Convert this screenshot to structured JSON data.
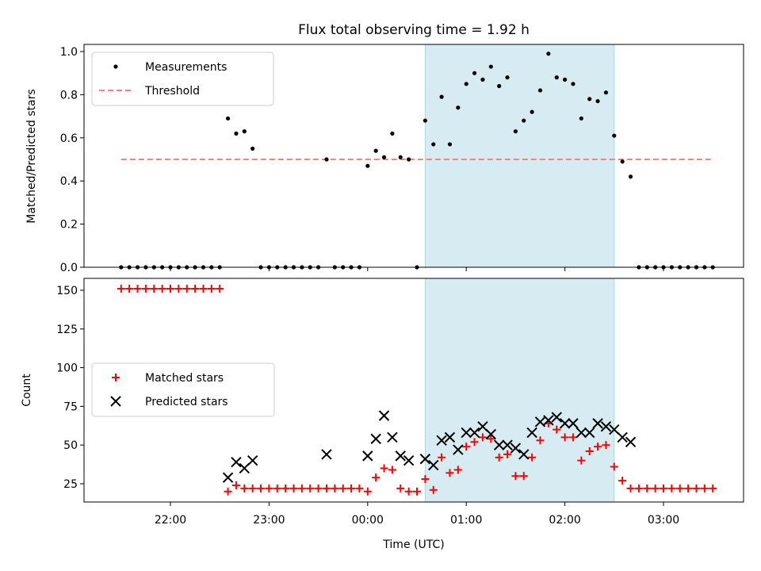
{
  "chart_data": [
    {
      "type": "scatter",
      "title": "Flux total observing time = 1.92 h",
      "ylabel": "Matched/Predicted stars",
      "xlabel": "",
      "ylim": [
        0,
        1.03
      ],
      "yticks": [
        "0.0",
        "0.2",
        "0.4",
        "0.6",
        "0.8",
        "1.0"
      ],
      "ytick_values": [
        0,
        0.2,
        0.4,
        0.6,
        0.8,
        1.0
      ],
      "legend": {
        "placement": "top-left",
        "entries": [
          "Measurements",
          "Threshold"
        ]
      },
      "shaded_interval": {
        "start": "00:35",
        "end": "02:30",
        "color": "#add8e6"
      },
      "threshold": {
        "y": 0.5,
        "x_start": "21:30",
        "x_end": "03:30",
        "color": "#ff7f7f"
      },
      "series": [
        {
          "name": "Measurements",
          "color": "#000000",
          "marker": "dot",
          "x": [
            "21:30",
            "21:35",
            "21:40",
            "21:45",
            "21:50",
            "21:55",
            "22:00",
            "22:05",
            "22:10",
            "22:15",
            "22:20",
            "22:25",
            "22:30",
            "22:35",
            "22:40",
            "22:45",
            "22:50",
            "22:55",
            "23:00",
            "23:05",
            "23:10",
            "23:15",
            "23:20",
            "23:25",
            "23:30",
            "23:35",
            "23:40",
            "23:45",
            "23:50",
            "23:55",
            "00:00",
            "00:05",
            "00:10",
            "00:15",
            "00:20",
            "00:25",
            "00:30",
            "00:35",
            "00:40",
            "00:45",
            "00:50",
            "00:55",
            "01:00",
            "01:05",
            "01:10",
            "01:15",
            "01:20",
            "01:25",
            "01:30",
            "01:35",
            "01:40",
            "01:45",
            "01:50",
            "01:55",
            "02:00",
            "02:05",
            "02:10",
            "02:15",
            "02:20",
            "02:25",
            "02:30",
            "02:35",
            "02:40",
            "02:45",
            "02:50",
            "02:55",
            "03:00",
            "03:05",
            "03:10",
            "03:15",
            "03:20",
            "03:25",
            "03:30"
          ],
          "y": [
            0,
            0,
            0,
            0,
            0,
            0,
            0,
            0,
            0,
            0,
            0,
            0,
            0,
            0.69,
            0.62,
            0.63,
            0.55,
            0,
            0,
            0,
            0,
            0,
            0,
            0,
            0,
            0.5,
            0,
            0,
            0,
            0,
            0.47,
            0.54,
            0.51,
            0.62,
            0.51,
            0.5,
            0,
            0.68,
            0.57,
            0.79,
            0.57,
            0.74,
            0.85,
            0.9,
            0.87,
            0.93,
            0.84,
            0.88,
            0.63,
            0.68,
            0.72,
            0.82,
            0.99,
            0.88,
            0.87,
            0.85,
            0.69,
            0.78,
            0.77,
            0.81,
            0.61,
            0.49,
            0.42,
            0,
            0,
            0,
            0,
            0,
            0,
            0,
            0,
            0,
            0
          ]
        }
      ]
    },
    {
      "type": "scatter",
      "title": "",
      "ylabel": "Count",
      "xlabel": "Time (UTC)",
      "ylim": [
        13,
        158
      ],
      "yticks": [
        "25",
        "50",
        "75",
        "100",
        "125",
        "150"
      ],
      "ytick_values": [
        25,
        50,
        75,
        100,
        125,
        150
      ],
      "xticks": [
        "22:00",
        "23:00",
        "00:00",
        "01:00",
        "02:00",
        "03:00"
      ],
      "legend": {
        "placement": "center-left",
        "entries": [
          "Matched stars",
          "Predicted stars"
        ]
      },
      "shaded_interval": {
        "start": "00:35",
        "end": "02:30",
        "color": "#add8e6"
      },
      "series": [
        {
          "name": "Matched stars",
          "color": "#ff0000",
          "marker": "plus",
          "x": [
            "21:30",
            "21:35",
            "21:40",
            "21:45",
            "21:50",
            "21:55",
            "22:00",
            "22:05",
            "22:10",
            "22:15",
            "22:20",
            "22:25",
            "22:30",
            "22:35",
            "22:40",
            "22:45",
            "22:50",
            "22:55",
            "23:00",
            "23:05",
            "23:10",
            "23:15",
            "23:20",
            "23:25",
            "23:30",
            "23:35",
            "23:40",
            "23:45",
            "23:50",
            "23:55",
            "00:00",
            "00:05",
            "00:10",
            "00:15",
            "00:20",
            "00:25",
            "00:30",
            "00:35",
            "00:40",
            "00:45",
            "00:50",
            "00:55",
            "01:00",
            "01:05",
            "01:10",
            "01:15",
            "01:20",
            "01:25",
            "01:30",
            "01:35",
            "01:40",
            "01:45",
            "01:50",
            "01:55",
            "02:00",
            "02:05",
            "02:10",
            "02:15",
            "02:20",
            "02:25",
            "02:30",
            "02:35",
            "02:40",
            "02:45",
            "02:50",
            "02:55",
            "03:00",
            "03:05",
            "03:10",
            "03:15",
            "03:20",
            "03:25",
            "03:30"
          ],
          "y": [
            151,
            151,
            151,
            151,
            151,
            151,
            151,
            151,
            151,
            151,
            151,
            151,
            151,
            20,
            24,
            22,
            22,
            22,
            22,
            22,
            22,
            22,
            22,
            22,
            22,
            22,
            22,
            22,
            22,
            22,
            20,
            29,
            35,
            34,
            22,
            20,
            20,
            28,
            21,
            42,
            32,
            34,
            49,
            52,
            55,
            54,
            42,
            44,
            30,
            30,
            42,
            53,
            64,
            60,
            55,
            55,
            40,
            46,
            49,
            50,
            36,
            27,
            22,
            22,
            22,
            22,
            22,
            22,
            22,
            22,
            22,
            22,
            22
          ]
        },
        {
          "name": "Predicted stars",
          "color": "#000000",
          "marker": "x",
          "x": [
            "22:35",
            "22:40",
            "22:45",
            "22:50",
            "23:35",
            "00:00",
            "00:05",
            "00:10",
            "00:15",
            "00:20",
            "00:25",
            "00:35",
            "00:40",
            "00:45",
            "00:50",
            "00:55",
            "01:00",
            "01:05",
            "01:10",
            "01:15",
            "01:20",
            "01:25",
            "01:30",
            "01:35",
            "01:40",
            "01:45",
            "01:50",
            "01:55",
            "02:00",
            "02:05",
            "02:10",
            "02:15",
            "02:20",
            "02:25",
            "02:30",
            "02:35",
            "02:40"
          ],
          "y": [
            29,
            39,
            35,
            40,
            44,
            43,
            54,
            69,
            55,
            43,
            40,
            41,
            37,
            53,
            55,
            47,
            58,
            58,
            62,
            57,
            50,
            50,
            48,
            44,
            58,
            65,
            66,
            68,
            64,
            64,
            58,
            58,
            64,
            62,
            60,
            55,
            52
          ]
        }
      ]
    }
  ]
}
